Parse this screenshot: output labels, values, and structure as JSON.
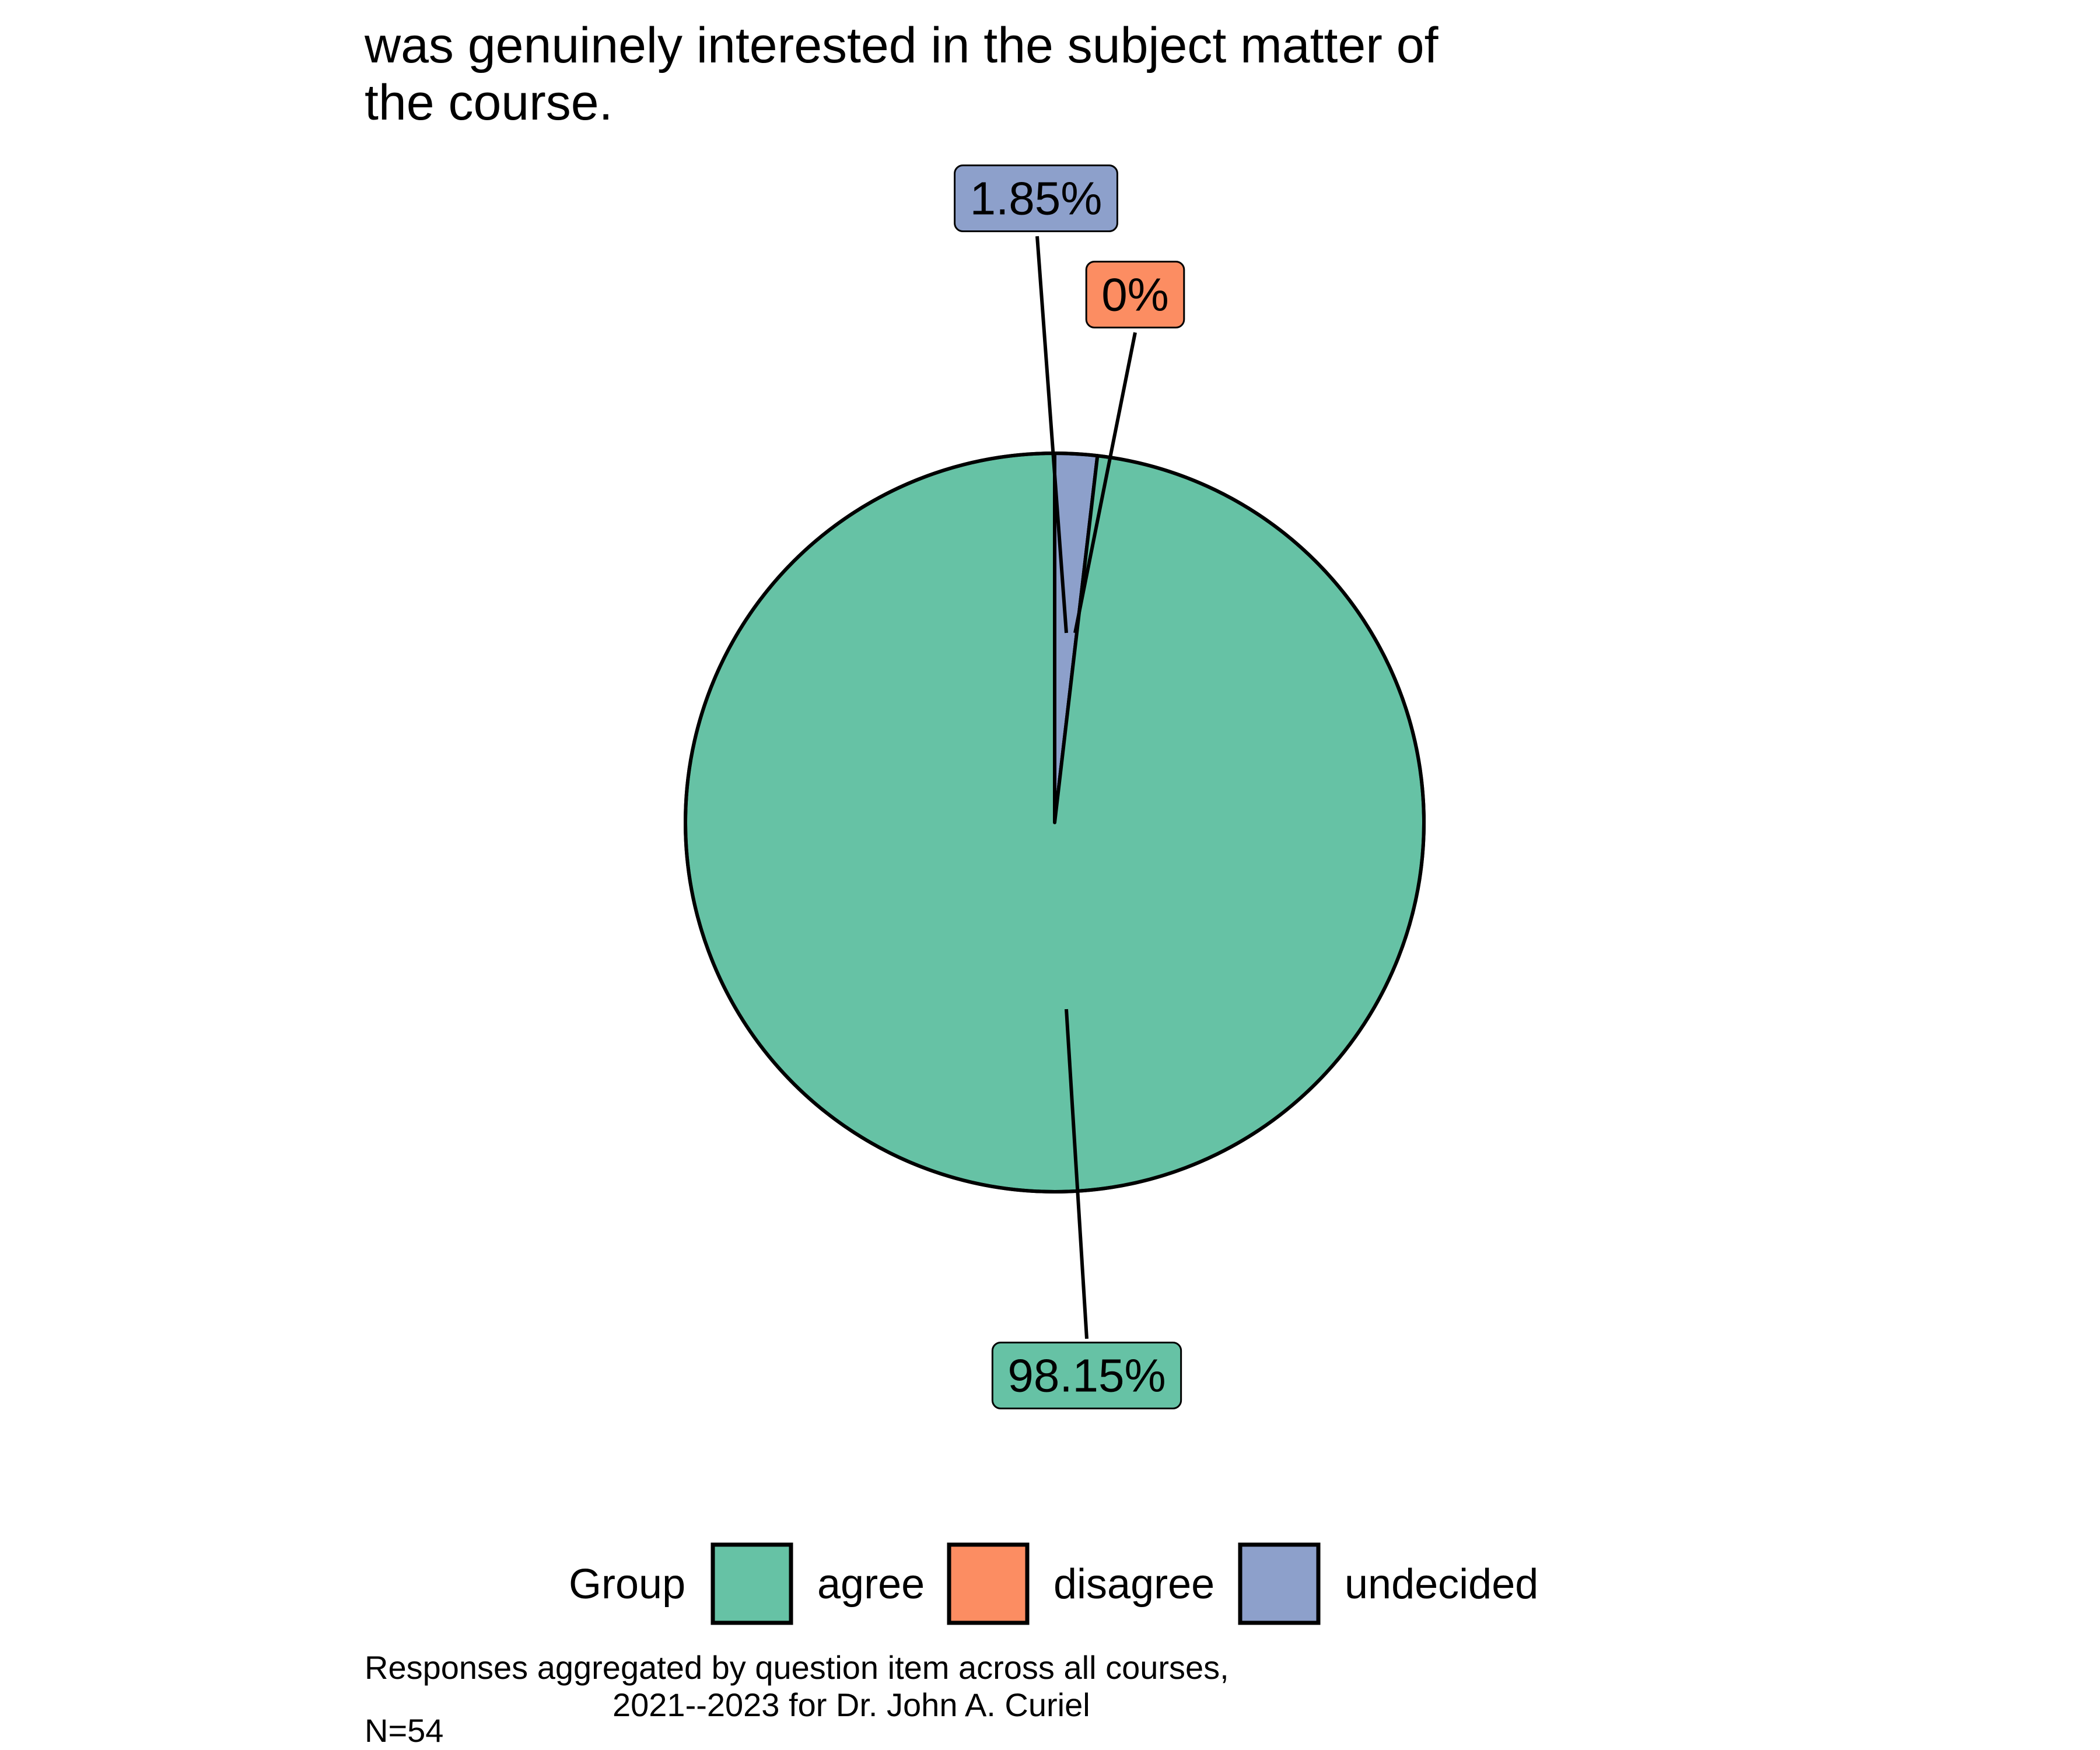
{
  "chart_data": {
    "type": "pie",
    "title_lines": [
      "was genuinely interested in the subject matter of",
      "the course."
    ],
    "slices": [
      {
        "name": "agree",
        "value": 98.15,
        "label": "98.15%",
        "color": "#66c2a5"
      },
      {
        "name": "disagree",
        "value": 0,
        "label": "0%",
        "color": "#fc8d62"
      },
      {
        "name": "undecided",
        "value": 1.85,
        "label": "1.85%",
        "color": "#8da0cb"
      }
    ],
    "legend": {
      "title": "Group",
      "placement": "bottom",
      "entries": [
        "agree",
        "disagree",
        "undecided"
      ]
    },
    "caption_lines": [
      "Responses aggregated by question item across all courses,",
      "2021--2023 for Dr. John A. Curiel"
    ],
    "note": "N=54"
  }
}
